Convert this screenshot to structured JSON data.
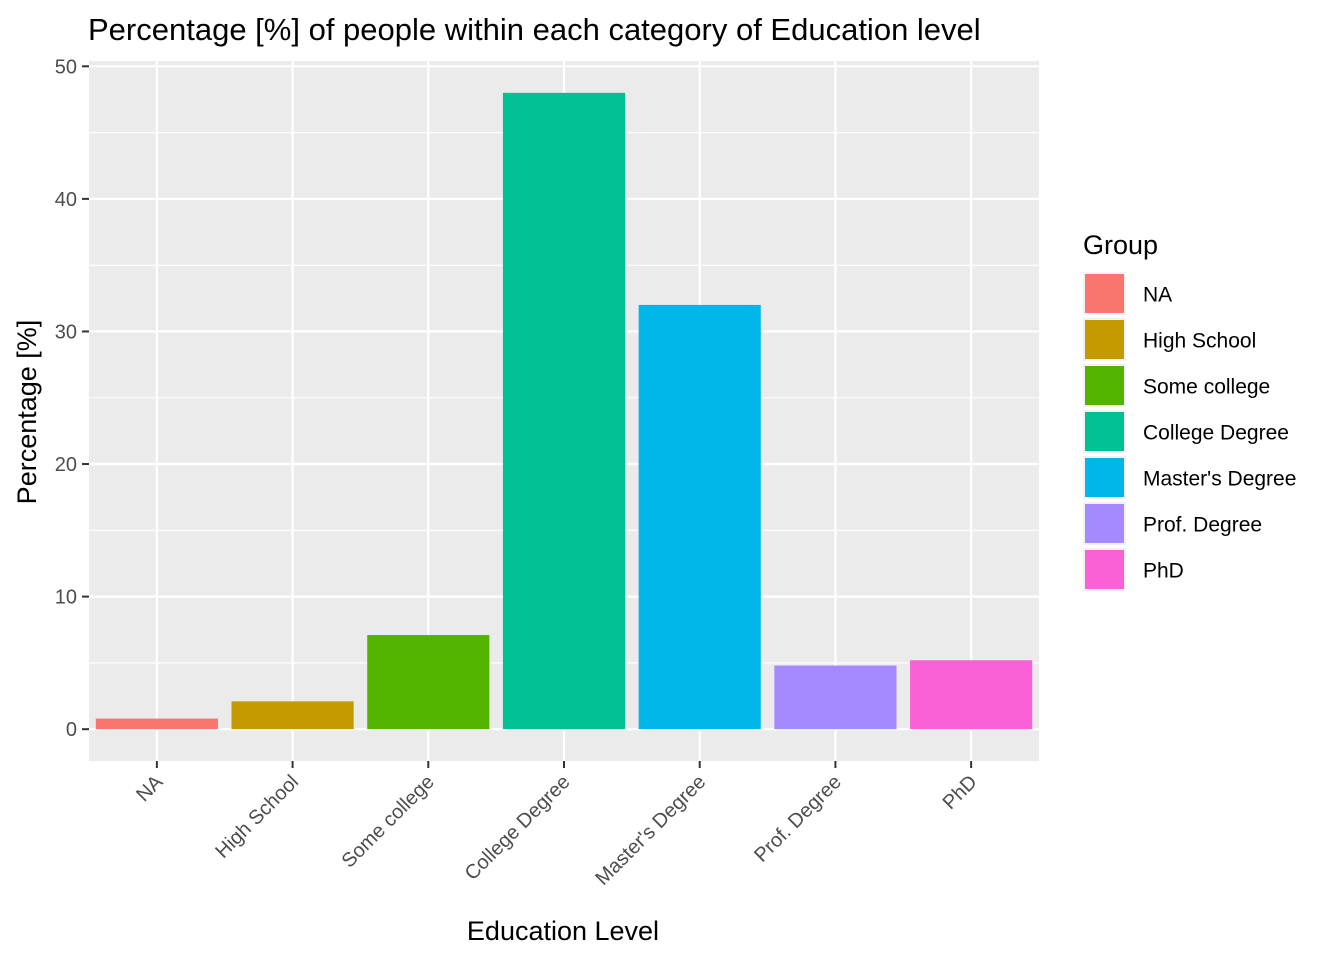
{
  "chart_data": {
    "type": "bar",
    "title": "Percentage [%] of people within each category of Education level",
    "xlabel": "Education Level",
    "ylabel": "Percentage [%]",
    "categories": [
      "NA",
      "High School",
      "Some college",
      "College Degree",
      "Master's Degree",
      "Prof. Degree",
      "PhD"
    ],
    "values": [
      0.8,
      2.1,
      7.1,
      48.0,
      32.0,
      4.8,
      5.2
    ],
    "colors": [
      "#F8766D",
      "#C49A00",
      "#53B400",
      "#00C094",
      "#00B6EB",
      "#A58AFF",
      "#FB61D7"
    ],
    "ylim": [
      -2.4,
      50.4
    ],
    "yticks": [
      0,
      10,
      20,
      30,
      40,
      50
    ],
    "grid": true,
    "panel_background": "#EBEBEB",
    "legend": {
      "title": "Group",
      "placement": "right",
      "entries": [
        "NA",
        "High School",
        "Some college",
        "College Degree",
        "Master's Degree",
        "Prof. Degree",
        "PhD"
      ]
    }
  }
}
